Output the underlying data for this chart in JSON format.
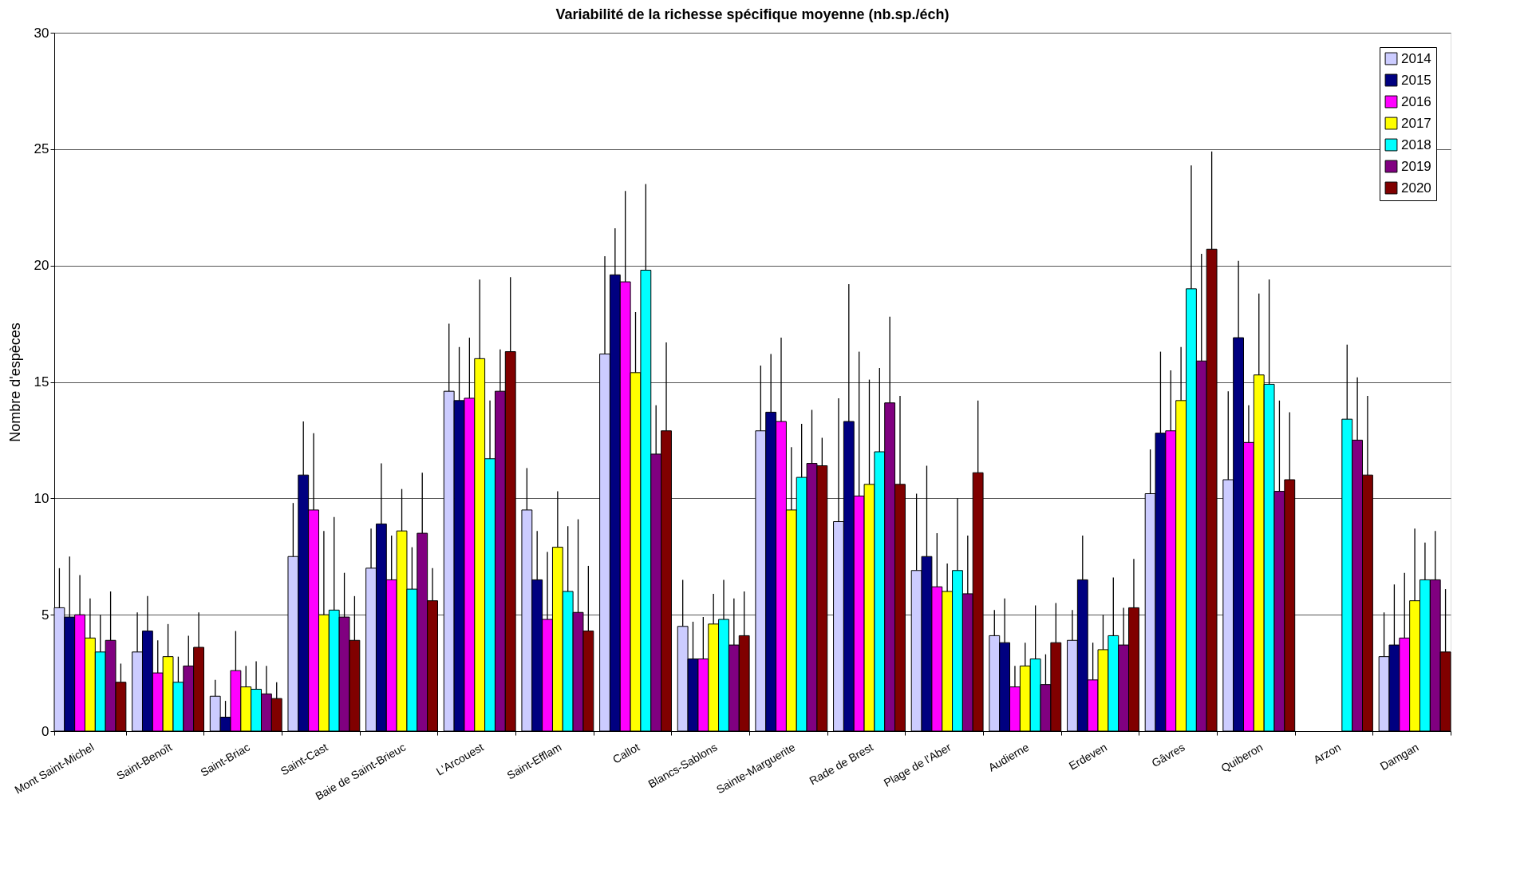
{
  "chart_data": {
    "type": "bar",
    "title": "Variabilité de la richesse spécifique moyenne (nb.sp./éch)",
    "ylabel": "Nombre d'espèces",
    "categories": [
      "Mont Saint-Michel",
      "Saint-Benoît",
      "Saint-Briac",
      "Saint-Cast",
      "Baie de Saint-Brieuc",
      "L'Arcouest",
      "Saint-Efflam",
      "Callot",
      "Blancs-Sablons",
      "Sainte-Marguerite",
      "Rade de Brest",
      "Plage de l'Aber",
      "Audierne",
      "Erdeven",
      "Gâvres",
      "Quiberon",
      "Arzon",
      "Damgan"
    ],
    "ylim": [
      0,
      30
    ],
    "yticks": [
      0,
      5,
      10,
      15,
      20,
      25,
      30
    ],
    "grid": "y",
    "legend": "top right",
    "series": [
      {
        "name": "2014",
        "color": "#ccccff",
        "values": [
          5.3,
          3.4,
          1.5,
          7.5,
          7.0,
          14.6,
          9.5,
          16.2,
          4.5,
          12.9,
          9.0,
          6.9,
          4.1,
          3.9,
          10.2,
          10.8,
          null,
          3.2
        ],
        "errors": [
          [
            5.3,
            7.0
          ],
          [
            3.4,
            5.1
          ],
          [
            1.5,
            2.2
          ],
          [
            7.5,
            9.8
          ],
          [
            7.0,
            8.7
          ],
          [
            14.6,
            17.5
          ],
          [
            9.5,
            11.3
          ],
          [
            16.2,
            20.4
          ],
          [
            4.5,
            6.5
          ],
          [
            12.9,
            15.7
          ],
          [
            9.0,
            14.3
          ],
          [
            6.9,
            10.2
          ],
          [
            4.1,
            5.2
          ],
          [
            3.9,
            5.2
          ],
          [
            10.2,
            12.1
          ],
          [
            10.8,
            14.6
          ],
          null,
          [
            3.2,
            5.1
          ]
        ]
      },
      {
        "name": "2015",
        "color": "#000080",
        "values": [
          4.9,
          4.3,
          0.6,
          11.0,
          8.9,
          14.2,
          6.5,
          19.6,
          3.1,
          13.7,
          13.3,
          7.5,
          3.8,
          6.5,
          12.8,
          16.9,
          null,
          3.7
        ],
        "errors": [
          [
            4.9,
            7.5
          ],
          [
            4.3,
            5.8
          ],
          [
            0.6,
            1.3
          ],
          [
            11.0,
            13.3
          ],
          [
            8.9,
            11.5
          ],
          [
            14.2,
            16.5
          ],
          [
            6.5,
            8.6
          ],
          [
            19.6,
            21.6
          ],
          [
            3.1,
            4.7
          ],
          [
            13.7,
            16.2
          ],
          [
            13.3,
            19.2
          ],
          [
            7.5,
            11.4
          ],
          [
            3.8,
            5.7
          ],
          [
            6.5,
            8.4
          ],
          [
            12.8,
            16.3
          ],
          [
            16.9,
            20.2
          ],
          null,
          [
            3.7,
            6.3
          ]
        ]
      },
      {
        "name": "2016",
        "color": "#ff00ff",
        "values": [
          5.0,
          2.5,
          2.6,
          9.5,
          6.5,
          14.3,
          4.8,
          19.3,
          3.1,
          13.3,
          10.1,
          6.2,
          1.9,
          2.2,
          12.9,
          12.4,
          null,
          4.0
        ],
        "errors": [
          [
            5.0,
            6.7
          ],
          [
            2.5,
            3.9
          ],
          [
            2.6,
            4.3
          ],
          [
            9.5,
            12.8
          ],
          [
            6.5,
            8.4
          ],
          [
            14.3,
            16.9
          ],
          [
            4.8,
            7.7
          ],
          [
            19.3,
            23.2
          ],
          [
            3.1,
            4.9
          ],
          [
            13.3,
            16.9
          ],
          [
            10.1,
            16.3
          ],
          [
            6.2,
            8.5
          ],
          [
            1.9,
            2.8
          ],
          [
            2.2,
            3.8
          ],
          [
            12.9,
            15.5
          ],
          [
            12.4,
            14.0
          ],
          null,
          [
            4.0,
            6.8
          ]
        ]
      },
      {
        "name": "2017",
        "color": "#ffff00",
        "values": [
          4.0,
          3.2,
          1.9,
          5.0,
          8.6,
          16.0,
          7.9,
          15.4,
          4.6,
          9.5,
          10.6,
          6.0,
          2.8,
          3.5,
          14.2,
          15.3,
          null,
          5.6
        ],
        "errors": [
          [
            4.0,
            5.7
          ],
          [
            3.2,
            4.6
          ],
          [
            1.9,
            2.8
          ],
          [
            5.0,
            8.6
          ],
          [
            8.6,
            10.4
          ],
          [
            16.0,
            19.4
          ],
          [
            7.9,
            10.3
          ],
          [
            15.4,
            18.0
          ],
          [
            4.6,
            5.9
          ],
          [
            9.5,
            12.2
          ],
          [
            10.6,
            15.1
          ],
          [
            6.0,
            7.2
          ],
          [
            2.8,
            3.8
          ],
          [
            3.5,
            5.0
          ],
          [
            14.2,
            16.5
          ],
          [
            15.3,
            18.8
          ],
          null,
          [
            5.6,
            8.7
          ]
        ]
      },
      {
        "name": "2018",
        "color": "#00ffff",
        "values": [
          3.4,
          2.1,
          1.8,
          5.2,
          6.1,
          11.7,
          6.0,
          19.8,
          4.8,
          10.9,
          12.0,
          6.9,
          3.1,
          4.1,
          19.0,
          14.9,
          13.4,
          6.5
        ],
        "errors": [
          [
            3.4,
            5.0
          ],
          [
            2.1,
            3.2
          ],
          [
            1.8,
            3.0
          ],
          [
            5.2,
            9.2
          ],
          [
            6.1,
            7.9
          ],
          [
            11.7,
            14.2
          ],
          [
            6.0,
            8.8
          ],
          [
            19.8,
            23.5
          ],
          [
            4.8,
            6.5
          ],
          [
            10.9,
            13.2
          ],
          [
            12.0,
            15.6
          ],
          [
            6.9,
            10.0
          ],
          [
            3.1,
            5.4
          ],
          [
            4.1,
            6.6
          ],
          [
            19.0,
            24.3
          ],
          [
            14.9,
            19.4
          ],
          [
            13.4,
            16.6
          ],
          [
            6.5,
            8.1
          ]
        ]
      },
      {
        "name": "2019",
        "color": "#800080",
        "values": [
          3.9,
          2.8,
          1.6,
          4.9,
          8.5,
          14.6,
          5.1,
          11.9,
          3.7,
          11.5,
          14.1,
          5.9,
          2.0,
          3.7,
          15.9,
          10.3,
          12.5,
          6.5
        ],
        "errors": [
          [
            3.9,
            6.0
          ],
          [
            2.8,
            4.1
          ],
          [
            1.6,
            2.8
          ],
          [
            4.9,
            6.8
          ],
          [
            8.5,
            11.1
          ],
          [
            14.6,
            16.4
          ],
          [
            5.1,
            9.1
          ],
          [
            11.9,
            14.0
          ],
          [
            3.7,
            5.7
          ],
          [
            11.5,
            13.8
          ],
          [
            14.1,
            17.8
          ],
          [
            5.9,
            8.4
          ],
          [
            2.0,
            3.3
          ],
          [
            3.7,
            5.3
          ],
          [
            15.9,
            20.5
          ],
          [
            10.3,
            14.2
          ],
          [
            12.5,
            15.2
          ],
          [
            6.5,
            8.6
          ]
        ]
      },
      {
        "name": "2020",
        "color": "#800000",
        "values": [
          2.1,
          3.6,
          1.4,
          3.9,
          5.6,
          16.3,
          4.3,
          12.9,
          4.1,
          11.4,
          10.6,
          11.1,
          3.8,
          5.3,
          20.7,
          10.8,
          11.0,
          3.4
        ],
        "errors": [
          [
            2.1,
            2.9
          ],
          [
            3.6,
            5.1
          ],
          [
            1.4,
            2.1
          ],
          [
            3.9,
            5.8
          ],
          [
            5.6,
            7.0
          ],
          [
            16.3,
            19.5
          ],
          [
            4.3,
            7.1
          ],
          [
            12.9,
            16.7
          ],
          [
            4.1,
            6.0
          ],
          [
            11.4,
            12.6
          ],
          [
            10.6,
            14.4
          ],
          [
            11.1,
            14.2
          ],
          [
            3.8,
            5.5
          ],
          [
            5.3,
            7.4
          ],
          [
            20.7,
            24.9
          ],
          [
            10.8,
            13.7
          ],
          [
            11.0,
            14.4
          ],
          [
            3.4,
            6.1
          ]
        ]
      }
    ]
  }
}
